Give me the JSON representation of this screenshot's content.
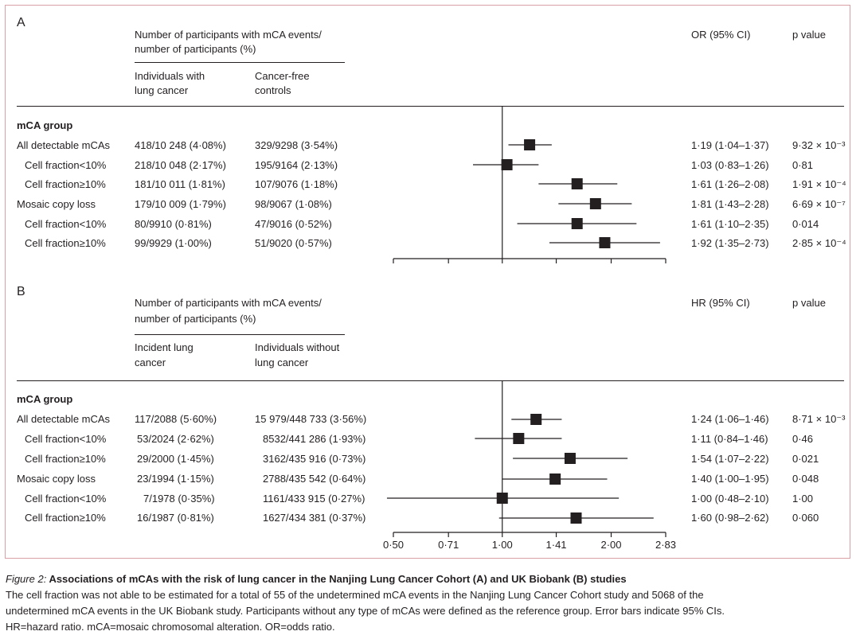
{
  "panels": [
    {
      "id": "A",
      "label": "A",
      "header": {
        "group_title_line1": "Number of participants with mCA events/",
        "group_title_line2": "number of participants (%)",
        "col1_line1": "Individuals with",
        "col1_line2": "lung cancer",
        "col2_line1": "Cancer-free",
        "col2_line2": "controls",
        "effect_label": "OR (95% CI)",
        "p_label": "p value"
      },
      "group_label": "mCA group",
      "rows": [
        {
          "label": "All detectable mCAs",
          "indent": false,
          "col1": "418/10 248 (4·08%)",
          "col2": "329/9298 (3·54%)",
          "effect": "1·19 (1·04–1·37)",
          "p": "9·32 × 10⁻³"
        },
        {
          "label": "Cell fraction<10%",
          "indent": true,
          "col1": "218/10 048 (2·17%)",
          "col2": "195/9164 (2·13%)",
          "effect": "1·03 (0·83–1·26)",
          "p": "0·81"
        },
        {
          "label": "Cell fraction≥10%",
          "indent": true,
          "col1": "181/10 011 (1·81%)",
          "col2": "107/9076 (1·18%)",
          "effect": "1·61 (1·26–2·08)",
          "p": "1·91 × 10⁻⁴"
        },
        {
          "label": "Mosaic copy loss",
          "indent": false,
          "col1": "179/10 009 (1·79%)",
          "col2": "98/9067 (1·08%)",
          "effect": "1·81 (1·43–2·28)",
          "p": "6·69 × 10⁻⁷"
        },
        {
          "label": "Cell fraction<10%",
          "indent": true,
          "col1": "80/9910 (0·81%)",
          "col2": "47/9016 (0·52%)",
          "effect": "1·61 (1·10–2·35)",
          "p": "0·014"
        },
        {
          "label": "Cell fraction≥10%",
          "indent": true,
          "col1": "99/9929 (1·00%)",
          "col2": "51/9020 (0·57%)",
          "effect": "1·92 (1·35–2·73)",
          "p": "2·85 × 10⁻⁴"
        }
      ]
    },
    {
      "id": "B",
      "label": "B",
      "header": {
        "group_title_line1": "Number of participants with mCA events/",
        "group_title_line2": "number of participants (%)",
        "col1_line1": "Incident lung",
        "col1_line2": "cancer",
        "col2_line1": "Individuals without",
        "col2_line2": "lung cancer",
        "effect_label": "HR (95% CI)",
        "p_label": "p value"
      },
      "group_label": "mCA group",
      "rows": [
        {
          "label": "All detectable mCAs",
          "indent": false,
          "col1": "117/2088 (5·60%)",
          "col2": "15 979/448 733 (3·56%)",
          "effect": "1·24 (1·06–1·46)",
          "p": "8·71 × 10⁻³"
        },
        {
          "label": "Cell fraction<10%",
          "indent": true,
          "col1": "53/2024 (2·62%)",
          "col2": "8532/441 286 (1·93%)",
          "effect": "1·11 (0·84–1·46)",
          "p": "0·46"
        },
        {
          "label": "Cell fraction≥10%",
          "indent": true,
          "col1": "29/2000 (1·45%)",
          "col2": "3162/435 916 (0·73%)",
          "effect": "1·54 (1·07–2·22)",
          "p": "0·021"
        },
        {
          "label": "Mosaic copy loss",
          "indent": false,
          "col1": "23/1994 (1·15%)",
          "col2": "2788/435 542 (0·64%)",
          "effect": "1·40 (1·00–1·95)",
          "p": "0·048"
        },
        {
          "label": "Cell fraction<10%",
          "indent": true,
          "col1": "7/1978 (0·35%)",
          "col2": "1161/433 915 (0·27%)",
          "effect": "1·00 (0·48–2·10)",
          "p": "1·00"
        },
        {
          "label": "Cell fraction≥10%",
          "indent": true,
          "col1": "16/1987 (0·81%)",
          "col2": "1627/434 381 (0·37%)",
          "effect": "1·60 (0·98–2·62)",
          "p": "0·060"
        }
      ]
    }
  ],
  "axis": {
    "tick_labels": [
      "0·50",
      "0·71",
      "1·00",
      "1·41",
      "2·00",
      "2·83"
    ]
  },
  "caption": {
    "title_prefix": "Figure 2:",
    "title_rest": " Associations of mCAs with the risk of lung cancer in the Nanjing Lung Cancer Cohort (A) and UK Biobank (B) studies",
    "line1": "The cell fraction was not able to be estimated for a total of 55 of the undetermined mCA events in the Nanjing Lung Cancer Cohort study and 5068 of the",
    "line2": "undetermined mCA events in the UK Biobank study. Participants without any type of mCAs were defined as the reference group. Error bars indicate 95% CIs.",
    "line3": "HR=hazard ratio. mCA=mosaic chromosomal alteration. OR=odds ratio."
  },
  "chart_data": [
    {
      "type": "forest",
      "panel": "A",
      "measure": "OR",
      "scale": "log2",
      "reference": 1.0,
      "xlim": [
        0.5,
        2.83
      ],
      "xticks": [
        0.5,
        0.71,
        1.0,
        1.41,
        2.0,
        2.83
      ],
      "xtick_labels_shown": false,
      "categories": [
        "All detectable mCAs",
        "Cell fraction<10%",
        "Cell fraction≥10%",
        "Mosaic copy loss",
        "Cell fraction<10%",
        "Cell fraction≥10%"
      ],
      "estimate": [
        1.19,
        1.03,
        1.61,
        1.81,
        1.61,
        1.92
      ],
      "lower": [
        1.04,
        0.83,
        1.26,
        1.43,
        1.1,
        1.35
      ],
      "upper": [
        1.37,
        1.26,
        2.08,
        2.28,
        2.35,
        2.73
      ]
    },
    {
      "type": "forest",
      "panel": "B",
      "measure": "HR",
      "scale": "log2",
      "reference": 1.0,
      "xlim": [
        0.5,
        2.83
      ],
      "xticks": [
        0.5,
        0.71,
        1.0,
        1.41,
        2.0,
        2.83
      ],
      "xtick_labels_shown": true,
      "categories": [
        "All detectable mCAs",
        "Cell fraction<10%",
        "Cell fraction≥10%",
        "Mosaic copy loss",
        "Cell fraction<10%",
        "Cell fraction≥10%"
      ],
      "estimate": [
        1.24,
        1.11,
        1.54,
        1.4,
        1.0,
        1.6
      ],
      "lower": [
        1.06,
        0.84,
        1.07,
        1.0,
        0.48,
        0.98
      ],
      "upper": [
        1.46,
        1.46,
        2.22,
        1.95,
        2.1,
        2.62
      ]
    }
  ]
}
